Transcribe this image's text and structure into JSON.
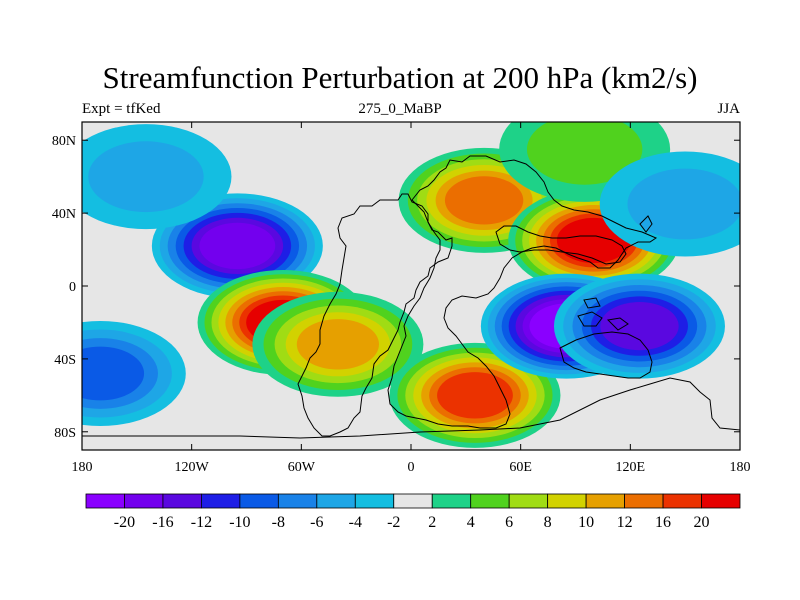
{
  "chart_data": {
    "type": "heatmap",
    "title": "Streamfunction Perturbation at 200 hPa (km2/s)",
    "left_string": "Expt = tfKed",
    "center_string": "275_0_MaBP",
    "right_string": "JJA",
    "xlim": [
      -180,
      180
    ],
    "ylim": [
      -90,
      90
    ],
    "x_ticks": [
      {
        "value": -180,
        "label": "180"
      },
      {
        "value": -120,
        "label": "120W"
      },
      {
        "value": -60,
        "label": "60W"
      },
      {
        "value": 0,
        "label": "0"
      },
      {
        "value": 60,
        "label": "60E"
      },
      {
        "value": 120,
        "label": "120E"
      },
      {
        "value": 180,
        "label": "180"
      }
    ],
    "y_ticks": [
      {
        "value": 80,
        "label": "80N"
      },
      {
        "value": 40,
        "label": "40N"
      },
      {
        "value": 0,
        "label": "0"
      },
      {
        "value": -40,
        "label": "40S"
      },
      {
        "value": -80,
        "label": "80S"
      }
    ],
    "contour_levels": [
      -20,
      -16,
      -12,
      -10,
      -8,
      -6,
      -4,
      -2,
      2,
      4,
      6,
      8,
      10,
      12,
      16,
      20
    ],
    "colorbar_labels": [
      "-20",
      "-16",
      "-12",
      "-10",
      "-8",
      "-6",
      "-4",
      "-2",
      "2",
      "4",
      "6",
      "8",
      "10",
      "12",
      "16",
      "20"
    ],
    "colors": [
      "#8a00ff",
      "#7300ee",
      "#5a08e0",
      "#1e1ee6",
      "#0a5ae6",
      "#1982e8",
      "#1ea6e6",
      "#14bee1",
      "#e6e6e6",
      "#1ed288",
      "#50d21e",
      "#a0dc14",
      "#d2d200",
      "#e6a000",
      "#eb6e00",
      "#eb3200",
      "#e60000"
    ],
    "centers": [
      {
        "lon": -95,
        "lat": 22,
        "value": -19
      },
      {
        "lon": -70,
        "lat": -20,
        "value": 23
      },
      {
        "lon": -40,
        "lat": -32,
        "value": 10
      },
      {
        "lon": 40,
        "lat": 47,
        "value": 12
      },
      {
        "lon": 100,
        "lat": 25,
        "value": 22
      },
      {
        "lon": 35,
        "lat": -60,
        "value": 16
      },
      {
        "lon": 85,
        "lat": -22,
        "value": -20
      },
      {
        "lon": 125,
        "lat": -22,
        "value": -14
      },
      {
        "lon": -145,
        "lat": 60,
        "value": -4
      },
      {
        "lon": 95,
        "lat": 75,
        "value": 4
      },
      {
        "lon": -170,
        "lat": -48,
        "value": -8
      },
      {
        "lon": 150,
        "lat": 45,
        "value": -4
      }
    ]
  }
}
